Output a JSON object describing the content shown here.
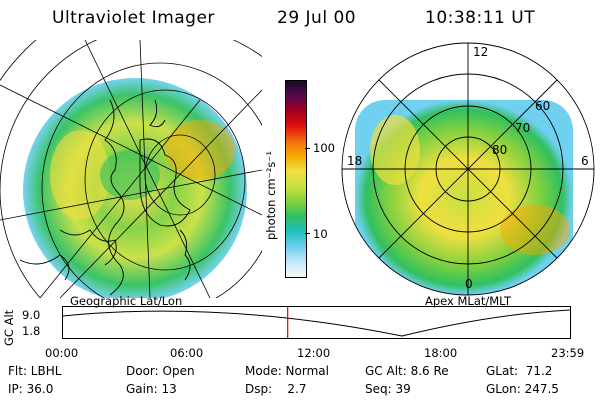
{
  "header": {
    "instrument": "Ultraviolet Imager",
    "date": "29 Jul 00",
    "time": "10:38:11 UT"
  },
  "colorbar": {
    "unit_label": "photon cm⁻²s⁻¹",
    "ticks": [
      "100",
      "10"
    ],
    "colors": [
      "#1a0a2a",
      "#5a0a4a",
      "#a00020",
      "#e01010",
      "#f07010",
      "#f8a800",
      "#f0e040",
      "#c8e040",
      "#80d040",
      "#30c060",
      "#20c0c0",
      "#70d0f0",
      "#c0e8f8",
      "#f8f8f8"
    ]
  },
  "left_panel": {
    "caption": "Geographic Lat/Lon"
  },
  "right_panel": {
    "caption": "Apex MLat/MLT",
    "mlt_labels": {
      "top": "12",
      "left": "18",
      "right": "6",
      "bottom": "0"
    },
    "lat_labels": [
      "60",
      "70",
      "80"
    ]
  },
  "timeline": {
    "ylabel": "GC Alt",
    "y_ticks": [
      "9.0",
      "1.8"
    ],
    "x_ticks": [
      "00:00",
      "06:00",
      "12:00",
      "18:00",
      "23:59"
    ],
    "current_time_hours": 10.636,
    "marker_color": "#e00000"
  },
  "info": {
    "flt": "Flt: LBHL",
    "ip": "IP: 36.0",
    "door": "Door: Open",
    "gain": "Gain: 13",
    "mode": "Mode: Normal",
    "dsp": "Dsp:    2.7",
    "gcalt": "GC Alt: 8.6 Re",
    "seq": "Seq: 39",
    "glat": "GLat:  71.2",
    "glon": "GLon: 247.5"
  }
}
